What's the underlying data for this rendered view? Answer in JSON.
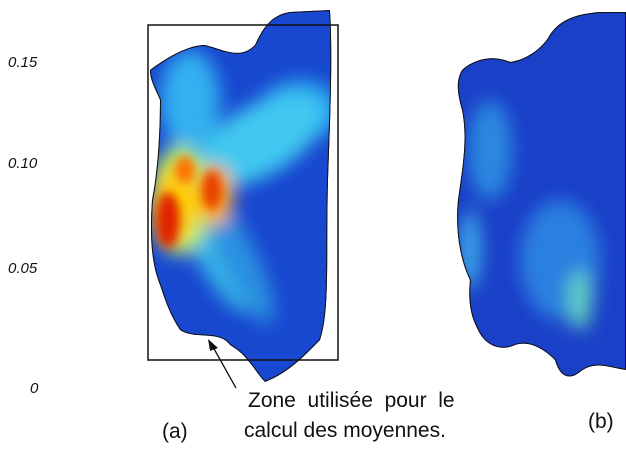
{
  "scale": {
    "labels": [
      "0.15",
      "0.10",
      "0.05",
      "0"
    ]
  },
  "panels": [
    {
      "label": "(a)"
    },
    {
      "label": "(b)"
    }
  ],
  "annotation": {
    "lines": [
      "Zone  utilisée  pour  le",
      "calcul des moyennes."
    ]
  }
}
